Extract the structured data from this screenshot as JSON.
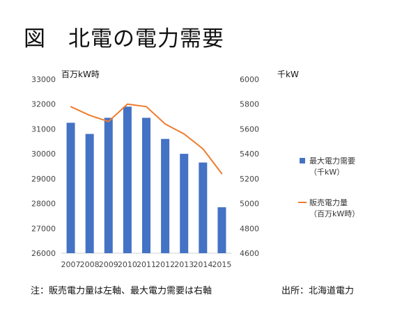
{
  "page": {
    "title": "図　北電の電力需要",
    "footnote": "注：販売電力量は左軸、最大電力需要は右軸",
    "source": "出所：北海道電力"
  },
  "colors": {
    "bar": "#4472C4",
    "line": "#ED7D31",
    "axis": "#d0d0d0"
  },
  "chart_data": {
    "type": "bar+line",
    "categories": [
      "2007",
      "2008",
      "2009",
      "2010",
      "2011",
      "2012",
      "2013",
      "2014",
      "2015"
    ],
    "left_axis": {
      "unit_label": "百万kW時",
      "ticks": [
        26000,
        27000,
        28000,
        29000,
        30000,
        31000,
        32000,
        33000
      ],
      "range": [
        26000,
        33000
      ]
    },
    "right_axis": {
      "unit_label": "千kW",
      "ticks": [
        4600,
        4800,
        5000,
        5200,
        5400,
        5600,
        5800,
        6000
      ],
      "range": [
        4600,
        6000
      ]
    },
    "series": [
      {
        "name": "最大電力需要",
        "unit": "（千kW）",
        "type": "bar",
        "axis": "right",
        "values": [
          5650,
          5560,
          5690,
          5780,
          5690,
          5520,
          5400,
          5330,
          4970
        ]
      },
      {
        "name": "販売電力量",
        "unit": "（百万kW時）",
        "type": "line",
        "axis": "left",
        "values": [
          31900,
          31550,
          31300,
          32000,
          31900,
          31200,
          30800,
          30200,
          29200
        ]
      }
    ],
    "legend": "right",
    "grid": false
  }
}
